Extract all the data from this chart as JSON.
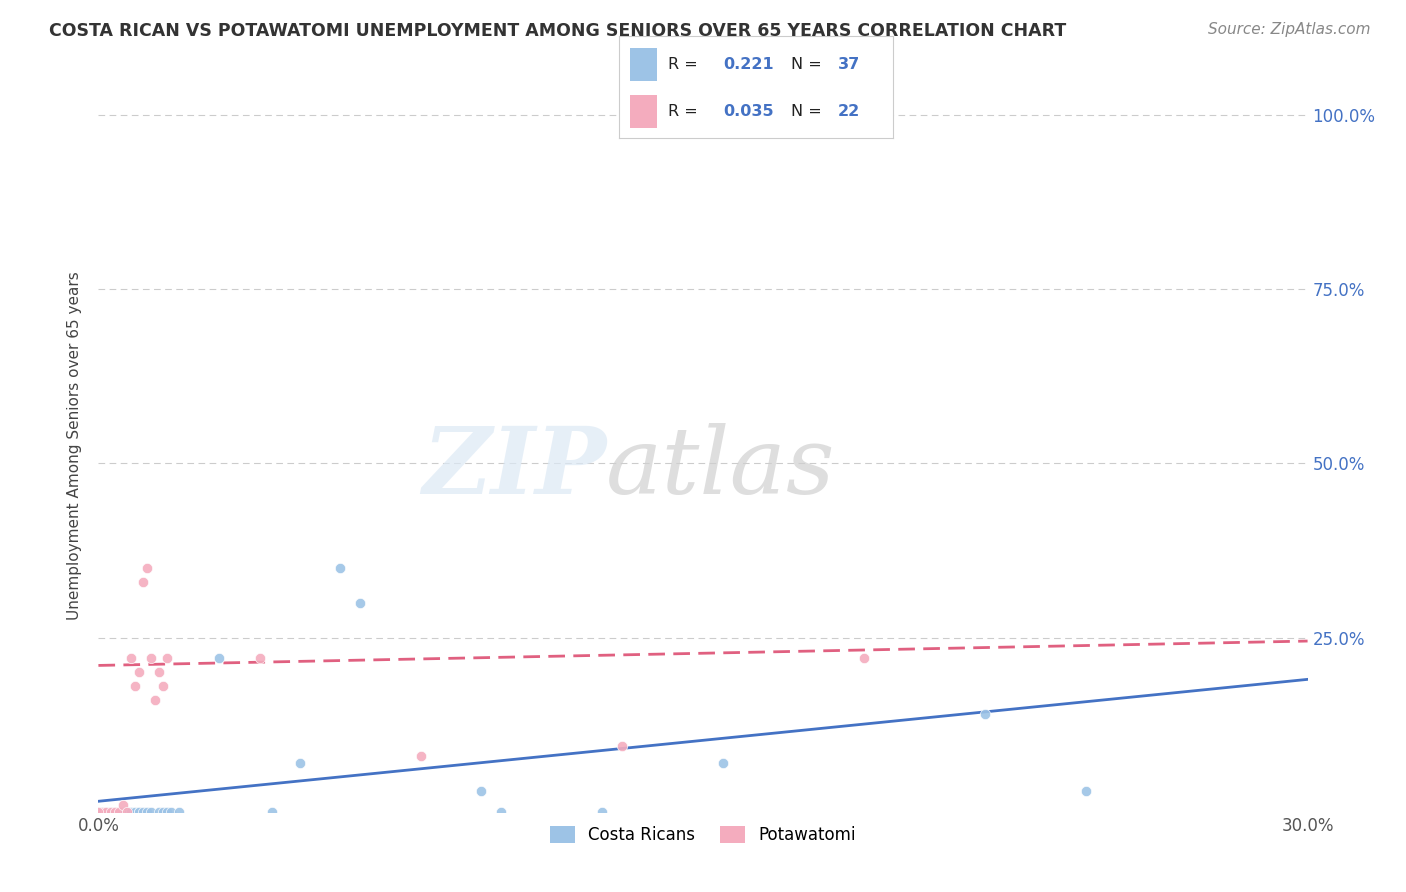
{
  "title": "COSTA RICAN VS POTAWATOMI UNEMPLOYMENT AMONG SENIORS OVER 65 YEARS CORRELATION CHART",
  "source": "Source: ZipAtlas.com",
  "ylabel": "Unemployment Among Seniors over 65 years",
  "xlim": [
    0.0,
    0.3
  ],
  "ylim": [
    0.0,
    1.05
  ],
  "r_costa_rican": "0.221",
  "n_costa_rican": "37",
  "r_potawatomi": "0.035",
  "n_potawatomi": "22",
  "costa_rican_color": "#9dc3e6",
  "potawatomi_color": "#f4acbe",
  "trend_costa_rican_color": "#4472c4",
  "trend_potawatomi_color": "#e06080",
  "trend_potawatomi_dash": true,
  "background_color": "#ffffff",
  "cr_x": [
    0.0,
    0.001,
    0.001,
    0.002,
    0.003,
    0.004,
    0.005,
    0.006,
    0.007,
    0.008,
    0.009,
    0.01,
    0.01,
    0.011,
    0.012,
    0.013,
    0.014,
    0.015,
    0.016,
    0.017,
    0.018,
    0.02,
    0.021,
    0.022,
    0.024,
    0.03,
    0.035,
    0.04,
    0.05,
    0.06,
    0.07,
    0.1,
    0.12,
    0.13,
    0.16,
    0.22,
    0.25
  ],
  "cr_y": [
    0.0,
    0.0,
    0.0,
    0.0,
    0.0,
    0.0,
    0.0,
    0.0,
    0.0,
    0.0,
    0.0,
    0.0,
    0.02,
    0.0,
    0.01,
    0.0,
    0.0,
    0.0,
    0.0,
    0.0,
    0.0,
    0.0,
    0.0,
    0.01,
    0.0,
    0.0,
    0.0,
    0.0,
    0.07,
    0.35,
    0.3,
    0.03,
    0.0,
    0.05,
    0.07,
    0.14,
    0.03
  ],
  "pw_x": [
    0.001,
    0.002,
    0.003,
    0.004,
    0.005,
    0.006,
    0.007,
    0.008,
    0.009,
    0.01,
    0.011,
    0.012,
    0.013,
    0.014,
    0.015,
    0.017,
    0.018,
    0.02,
    0.04,
    0.08,
    0.13,
    0.19
  ],
  "pw_y": [
    0.0,
    0.0,
    0.0,
    0.0,
    0.0,
    0.01,
    0.0,
    0.0,
    0.22,
    0.2,
    0.22,
    0.22,
    0.22,
    0.16,
    0.33,
    0.35,
    0.2,
    0.18,
    0.22,
    0.08,
    0.09,
    0.22
  ]
}
